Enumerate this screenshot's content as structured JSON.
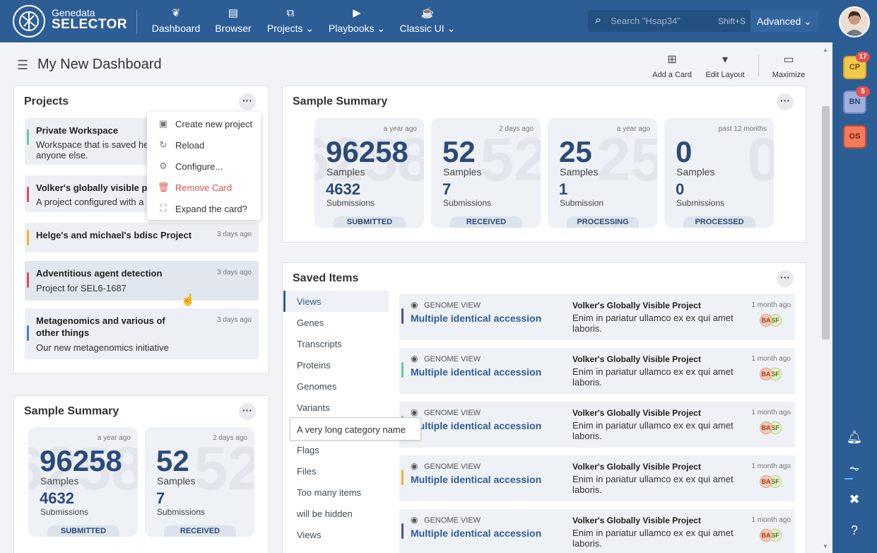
{
  "brand": {
    "line1": "Genedata",
    "line2": "SELECTOR"
  },
  "nav": [
    {
      "label": "Dashboard",
      "icon": "leaf-icon"
    },
    {
      "label": "Browser",
      "icon": "book-icon"
    },
    {
      "label": "Projects",
      "icon": "boxes-icon",
      "chevron": "⌄"
    },
    {
      "label": "Playbooks",
      "icon": "play-circle-icon",
      "chevron": "⌄"
    },
    {
      "label": "Classic UI",
      "icon": "cup-icon",
      "chevron": "⌄"
    }
  ],
  "search": {
    "placeholder": "Search \"Hsap34\"",
    "shortcut": "Shift+S",
    "mode": "Advanced"
  },
  "rail": {
    "badges": [
      {
        "initials": "CP",
        "count": "17",
        "color": "#f2c94c"
      },
      {
        "initials": "BN",
        "count": "5",
        "color": "#9fb0dd"
      },
      {
        "initials": "OS",
        "count": "",
        "color": "#f27a5d"
      }
    ]
  },
  "dashboard": {
    "title": "My New Dashboard",
    "tools": [
      {
        "label": "Add a Card",
        "icon": "plus-square-icon"
      },
      {
        "label": "Edit Layout",
        "icon": "paint-roller-icon"
      },
      {
        "label": "Maximize",
        "icon": "window-icon"
      }
    ]
  },
  "projects_card": {
    "title": "Projects",
    "items": [
      {
        "name": "Private Workspace",
        "desc": "Workspace that is saved he anyone else.",
        "time": "",
        "bar": "#6cc4a8"
      },
      {
        "name": "Volker's globally visible pro",
        "desc": "A project configured with a",
        "time": "",
        "bar": "#d94e66"
      },
      {
        "name": "Helge's and michael's bdisc Project",
        "desc": "",
        "time": "3 days ago",
        "bar": "#f0b33c"
      },
      {
        "name": "Adventitious agent detection",
        "desc": "Project for SEL6-1687",
        "time": "3 days ago",
        "bar": "#d94e66"
      },
      {
        "name": "Metagenomics and various of other things",
        "desc": "Our new metagenomics initiative",
        "time": "3 days ago",
        "bar": "#4f7ec0"
      }
    ],
    "menu": [
      {
        "label": "Create new project",
        "icon": "folder-plus-icon"
      },
      {
        "label": "Reload",
        "icon": "reload-icon"
      },
      {
        "label": "Configure...",
        "icon": "gear-icon"
      },
      {
        "label": "Remove Card",
        "icon": "trash-icon",
        "danger": true
      },
      {
        "label": "Expand the card?",
        "icon": "expand-icon"
      }
    ]
  },
  "sample_summary": {
    "title": "Sample Summary",
    "tiles": [
      {
        "time": "a year ago",
        "samples": "96258",
        "samples_label": "Samples",
        "subs": "4632",
        "subs_label": "Submissions",
        "status": "SUBMITTED"
      },
      {
        "time": "2 days ago",
        "samples": "52",
        "samples_label": "Samples",
        "subs": "7",
        "subs_label": "Submissions",
        "status": "RECEIVED"
      },
      {
        "time": "a year ago",
        "samples": "25",
        "samples_label": "Samples",
        "subs": "1",
        "subs_label": "Submission",
        "status": "PROCESSING"
      },
      {
        "time": "past 12 months",
        "samples": "0",
        "samples_label": "Samples",
        "subs": "0",
        "subs_label": "Submissions",
        "status": "PROCESSED"
      }
    ]
  },
  "saved_items": {
    "title": "Saved Items",
    "categories": [
      "Views",
      "Genes",
      "Transcripts",
      "Proteins",
      "Genomes",
      "Variants",
      "A very long category name",
      "Flags",
      "Files",
      "Too many items",
      "will be hidden",
      "Views"
    ],
    "tooltip": "A very long category name",
    "rows": [
      {
        "type": "GENOME VIEW",
        "name": "Multiple identical accession",
        "project": "Volker's Globally Visible Project",
        "desc": "Enim in pariatur ullamco ex ex qui amet laboris.",
        "time": "1 month ago",
        "av1": "BA",
        "av2": "SF",
        "bar": "#4f4f9c"
      },
      {
        "type": "GENOME VIEW",
        "name": "Multiple identical accession",
        "project": "Volker's Globally Visible Project",
        "desc": "Enim in pariatur ullamco ex ex qui amet laboris.",
        "time": "1 month ago",
        "av1": "BA",
        "av2": "SF",
        "bar": "#6cc4a8"
      },
      {
        "type": "GENOME VIEW",
        "name": "Multiple identical accession",
        "project": "Volker's Globally Visible Project",
        "desc": "Enim in pariatur ullamco ex ex qui amet laboris.",
        "time": "1 month ago",
        "av1": "BA",
        "av2": "SF",
        "bar": "#6cc4a8"
      },
      {
        "type": "GENOME VIEW",
        "name": "Multiple identical accession",
        "project": "Volker's Globally Visible Project",
        "desc": "Enim in pariatur ullamco ex ex qui amet laboris.",
        "time": "1 month ago",
        "av1": "BA",
        "av2": "SF",
        "bar": "#f0b33c"
      },
      {
        "type": "GENOME VIEW",
        "name": "Multiple identical accession",
        "project": "Volker's Globally Visible Project",
        "desc": "Enim in pariatur ullamco ex ex qui amet laboris.",
        "time": "1 month ago",
        "av1": "BA",
        "av2": "SF",
        "bar": "#4f4f9c"
      }
    ]
  }
}
